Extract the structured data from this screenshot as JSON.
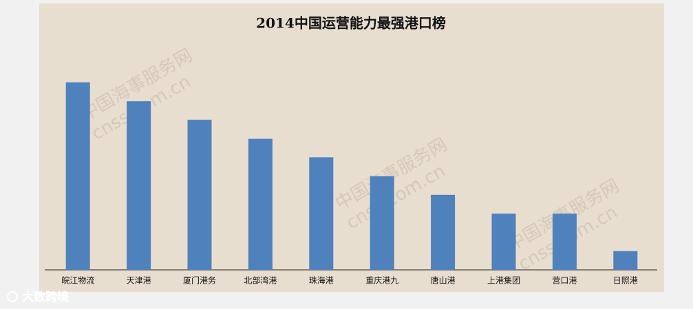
{
  "chart_data": {
    "type": "bar",
    "title": "2014中国运营能力最强港口榜",
    "categories": [
      "皖江物流",
      "天津港",
      "厦门港务",
      "北部湾港",
      "珠海港",
      "重庆港九",
      "唐山港",
      "上港集团",
      "营口港",
      "日照港"
    ],
    "values": [
      10,
      9,
      8,
      7,
      6,
      5,
      4,
      3,
      3,
      1
    ],
    "color": "#4f81bd",
    "ylim": [
      0,
      10
    ],
    "watermark": [
      "中国海事服务网",
      "cnss.com.cn"
    ],
    "logo": "大数跨境"
  }
}
